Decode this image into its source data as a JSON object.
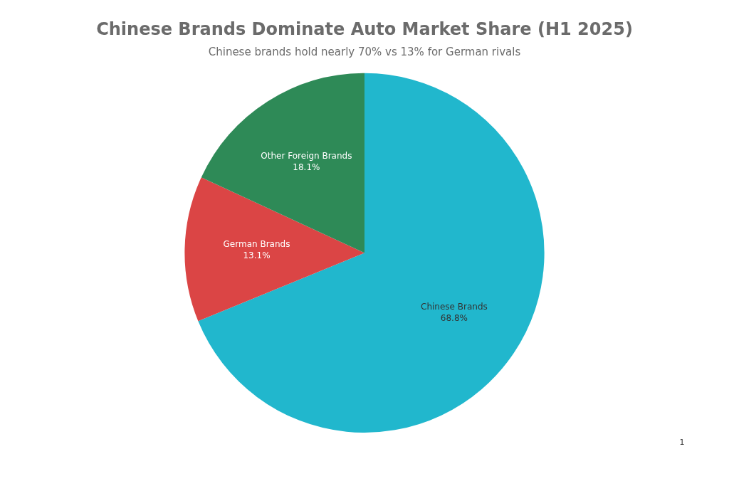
{
  "chart_data": {
    "type": "pie",
    "title": "Chinese Brands Dominate Auto Market Share (H1 2025)",
    "subtitle": "Chinese brands hold nearly 70% vs 13% for German rivals",
    "categories": [
      "Chinese Brands",
      "German Brands",
      "Other Foreign Brands"
    ],
    "values": [
      68.8,
      13.1,
      18.1
    ],
    "colors": [
      "#21b7cd",
      "#db4545",
      "#2e8a57"
    ],
    "value_labels": [
      "68.8%",
      "13.1%",
      "18.1%"
    ],
    "legend": false,
    "annotations": [
      "1"
    ]
  }
}
